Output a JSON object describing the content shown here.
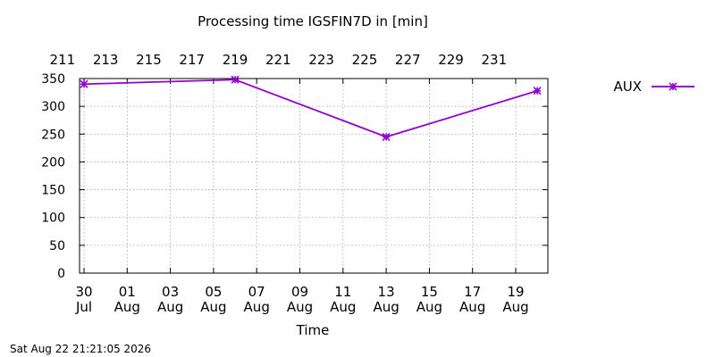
{
  "chart_data": {
    "type": "line",
    "title": "Processing time IGSFIN7D in [min]",
    "xlabel": "Time",
    "ylabel": "",
    "ylim": [
      0,
      350
    ],
    "y_ticks": [
      "0",
      "50",
      "100",
      "150",
      "200",
      "250",
      "300",
      "350"
    ],
    "x_bottom_ticks": [
      {
        "day": "30",
        "month": "Jul"
      },
      {
        "day": "01",
        "month": "Aug"
      },
      {
        "day": "03",
        "month": "Aug"
      },
      {
        "day": "05",
        "month": "Aug"
      },
      {
        "day": "07",
        "month": "Aug"
      },
      {
        "day": "09",
        "month": "Aug"
      },
      {
        "day": "11",
        "month": "Aug"
      },
      {
        "day": "13",
        "month": "Aug"
      },
      {
        "day": "15",
        "month": "Aug"
      },
      {
        "day": "17",
        "month": "Aug"
      },
      {
        "day": "19",
        "month": "Aug"
      }
    ],
    "x_top_ticks": [
      "211",
      "213",
      "215",
      "217",
      "219",
      "221",
      "223",
      "225",
      "227",
      "229",
      "231"
    ],
    "grid": true,
    "legend_position": "top-right",
    "series": [
      {
        "name": "AUX",
        "color": "#9400d3",
        "marker": "star",
        "points": [
          {
            "x": "2026-07-30",
            "y": 340
          },
          {
            "x": "2026-08-06",
            "y": 348
          },
          {
            "x": "2026-08-13",
            "y": 245
          },
          {
            "x": "2026-08-20",
            "y": 328
          }
        ]
      }
    ]
  },
  "footer": {
    "timestamp": "Sat Aug 22 21:21:05 2026"
  }
}
